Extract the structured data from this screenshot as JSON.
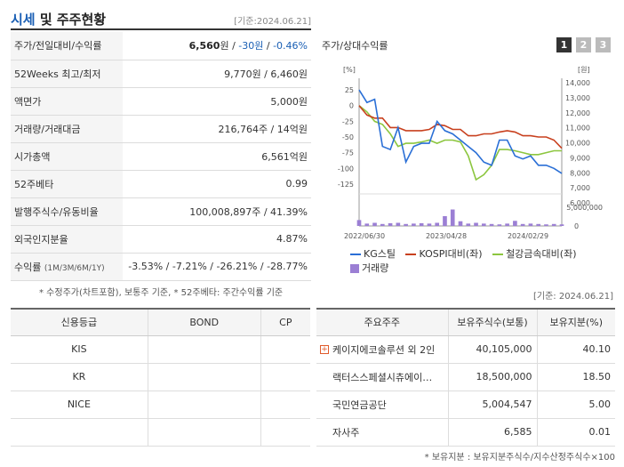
{
  "header": {
    "title_a": "시세",
    "title_b": " 및 주주현황",
    "date": "[기준:2024.06.21]"
  },
  "info": [
    {
      "key": "주가/전일대비/수익률",
      "price": "6,560",
      "unit": "원 / ",
      "change": "-30원",
      "sep": " / ",
      "rate": "-0.46%"
    },
    {
      "key": "52Weeks 최고/최저",
      "value": "9,770원 / 6,460원"
    },
    {
      "key": "액면가",
      "value": "5,000원"
    },
    {
      "key": "거래량/거래대금",
      "value": "216,764주 / 14억원"
    },
    {
      "key": "시가총액",
      "value": "6,561억원"
    },
    {
      "key": "52주베타",
      "value": "0.99"
    },
    {
      "key": "발행주식수/유동비율",
      "value": "100,008,897주 / 41.39%"
    },
    {
      "key": "외국인지분율",
      "value": "4.87%"
    },
    {
      "key": "수익률",
      "key_small": "(1M/3M/6M/1Y)",
      "value": "-3.53% / -7.21% / -26.21% / -28.77%"
    }
  ],
  "note1": "* 수정주가(차트포함), 보통주 기준, * 52주베타: 주간수익률 기준",
  "date2": "[기준: 2024.06.21]",
  "chart": {
    "title": "주가/상대수익률",
    "buttons": [
      "1",
      "2",
      "3"
    ],
    "left_unit": "[%]",
    "right_unit": "[원]",
    "vol_label": "5,000,000",
    "vol_zero": "0",
    "colors": {
      "stock": "#2a6fd6",
      "kospi": "#c8401e",
      "steel": "#8cc63f",
      "volume": "#9b7fd4"
    }
  },
  "chart_data": {
    "type": "line",
    "x_ticks": [
      "2022/06/30",
      "2023/04/28",
      "2024/02/29"
    ],
    "left_axis": {
      "ticks": [
        25,
        0,
        -25,
        -50,
        -75,
        -100,
        -125
      ],
      "ylim": [
        -135,
        35
      ]
    },
    "right_axis": {
      "ticks": [
        "14,000",
        "13,000",
        "12,000",
        "11,000",
        "10,000",
        "9,000",
        "8,000",
        "7,000",
        "6,000"
      ],
      "ylim": [
        5500,
        14500
      ]
    },
    "series": [
      {
        "name": "KG스틸",
        "axis": "left",
        "values": [
          25,
          5,
          10,
          -65,
          -70,
          -35,
          -90,
          -65,
          -60,
          -60,
          -25,
          -40,
          -45,
          -55,
          -65,
          -75,
          -90,
          -95,
          -55,
          -55,
          -80,
          -85,
          -80,
          -95,
          -95,
          -100,
          -108
        ]
      },
      {
        "name": "KOSPI대비(좌)",
        "axis": "left",
        "values": [
          0,
          -15,
          -20,
          -20,
          -35,
          -35,
          -40,
          -40,
          -40,
          -38,
          -30,
          -32,
          -38,
          -38,
          -48,
          -48,
          -45,
          -45,
          -42,
          -40,
          -42,
          -48,
          -48,
          -50,
          -50,
          -55,
          -68
        ]
      },
      {
        "name": "철강금속대비(좌)",
        "axis": "left",
        "values": [
          0,
          -10,
          -25,
          -30,
          -45,
          -65,
          -60,
          -60,
          -58,
          -55,
          -60,
          -55,
          -55,
          -58,
          -80,
          -118,
          -110,
          -95,
          -70,
          -70,
          -72,
          -75,
          -78,
          -78,
          -75,
          -72,
          -72
        ]
      }
    ],
    "volume": {
      "name": "거래량",
      "values": [
        1.5,
        0.6,
        0.8,
        0.5,
        0.7,
        0.8,
        0.5,
        0.6,
        0.7,
        0.6,
        0.8,
        2.5,
        4.2,
        1.2,
        0.6,
        0.8,
        0.6,
        0.5,
        0.4,
        0.6,
        1.3,
        0.5,
        0.6,
        0.5,
        0.4,
        0.5,
        0.4
      ],
      "unit": "millions"
    }
  },
  "credit": {
    "headers": [
      "신용등급",
      "BOND",
      "CP"
    ],
    "rows": [
      [
        "KIS",
        "",
        ""
      ],
      [
        "KR",
        "",
        ""
      ],
      [
        "NICE",
        "",
        ""
      ],
      [
        "",
        "",
        ""
      ]
    ]
  },
  "holders": {
    "headers": [
      "주요주주",
      "보유주식수(보통)",
      "보유지분(%)"
    ],
    "rows": [
      {
        "name": "케이지에코솔루션 외 2인",
        "shares": "40,105,000",
        "pct": "40.10",
        "plus": "+"
      },
      {
        "name": "랙터스스페셜시츄에이…",
        "shares": "18,500,000",
        "pct": "18.50"
      },
      {
        "name": "국민연금공단",
        "shares": "5,004,547",
        "pct": "5.00"
      },
      {
        "name": "자사주",
        "shares": "6,585",
        "pct": "0.01"
      }
    ]
  },
  "note2": "* 보유지분 : 보유지분주식수/지수산정주식수×100"
}
